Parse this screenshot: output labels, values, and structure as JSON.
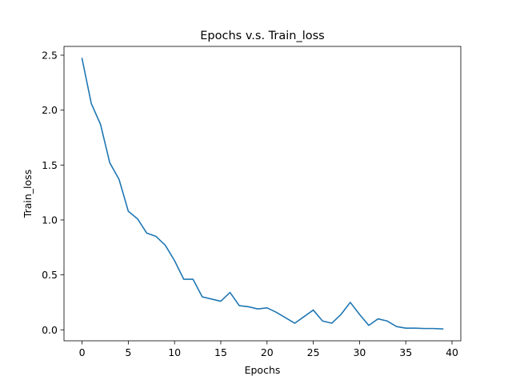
{
  "chart_data": {
    "type": "line",
    "title": "Epochs v.s. Train_loss",
    "xlabel": "Epochs",
    "ylabel": "Train_loss",
    "xlim": [
      -1.95,
      40.95
    ],
    "ylim": [
      -0.1,
      2.58
    ],
    "xticks": [
      0,
      5,
      10,
      15,
      20,
      25,
      30,
      35,
      40
    ],
    "yticks": [
      0.0,
      0.5,
      1.0,
      1.5,
      2.0,
      2.5
    ],
    "xtick_labels": [
      "0",
      "5",
      "10",
      "15",
      "20",
      "25",
      "30",
      "35",
      "40"
    ],
    "ytick_labels": [
      "0.0",
      "0.5",
      "1.0",
      "1.5",
      "2.0",
      "2.5"
    ],
    "grid": false,
    "series": [
      {
        "color": "#1f77b4",
        "x": [
          0,
          1,
          2,
          3,
          4,
          5,
          6,
          7,
          8,
          9,
          10,
          11,
          12,
          13,
          14,
          15,
          16,
          17,
          18,
          19,
          20,
          21,
          22,
          23,
          24,
          25,
          26,
          27,
          28,
          29,
          30,
          31,
          32,
          33,
          34,
          35,
          36,
          37,
          38,
          39
        ],
        "y": [
          2.47,
          2.06,
          1.87,
          1.52,
          1.37,
          1.08,
          1.01,
          0.88,
          0.85,
          0.77,
          0.63,
          0.46,
          0.46,
          0.3,
          0.28,
          0.26,
          0.34,
          0.22,
          0.21,
          0.19,
          0.2,
          0.16,
          0.11,
          0.06,
          0.12,
          0.18,
          0.08,
          0.06,
          0.14,
          0.25,
          0.14,
          0.04,
          0.1,
          0.08,
          0.03,
          0.015,
          0.015,
          0.012,
          0.012,
          0.008
        ]
      }
    ]
  }
}
